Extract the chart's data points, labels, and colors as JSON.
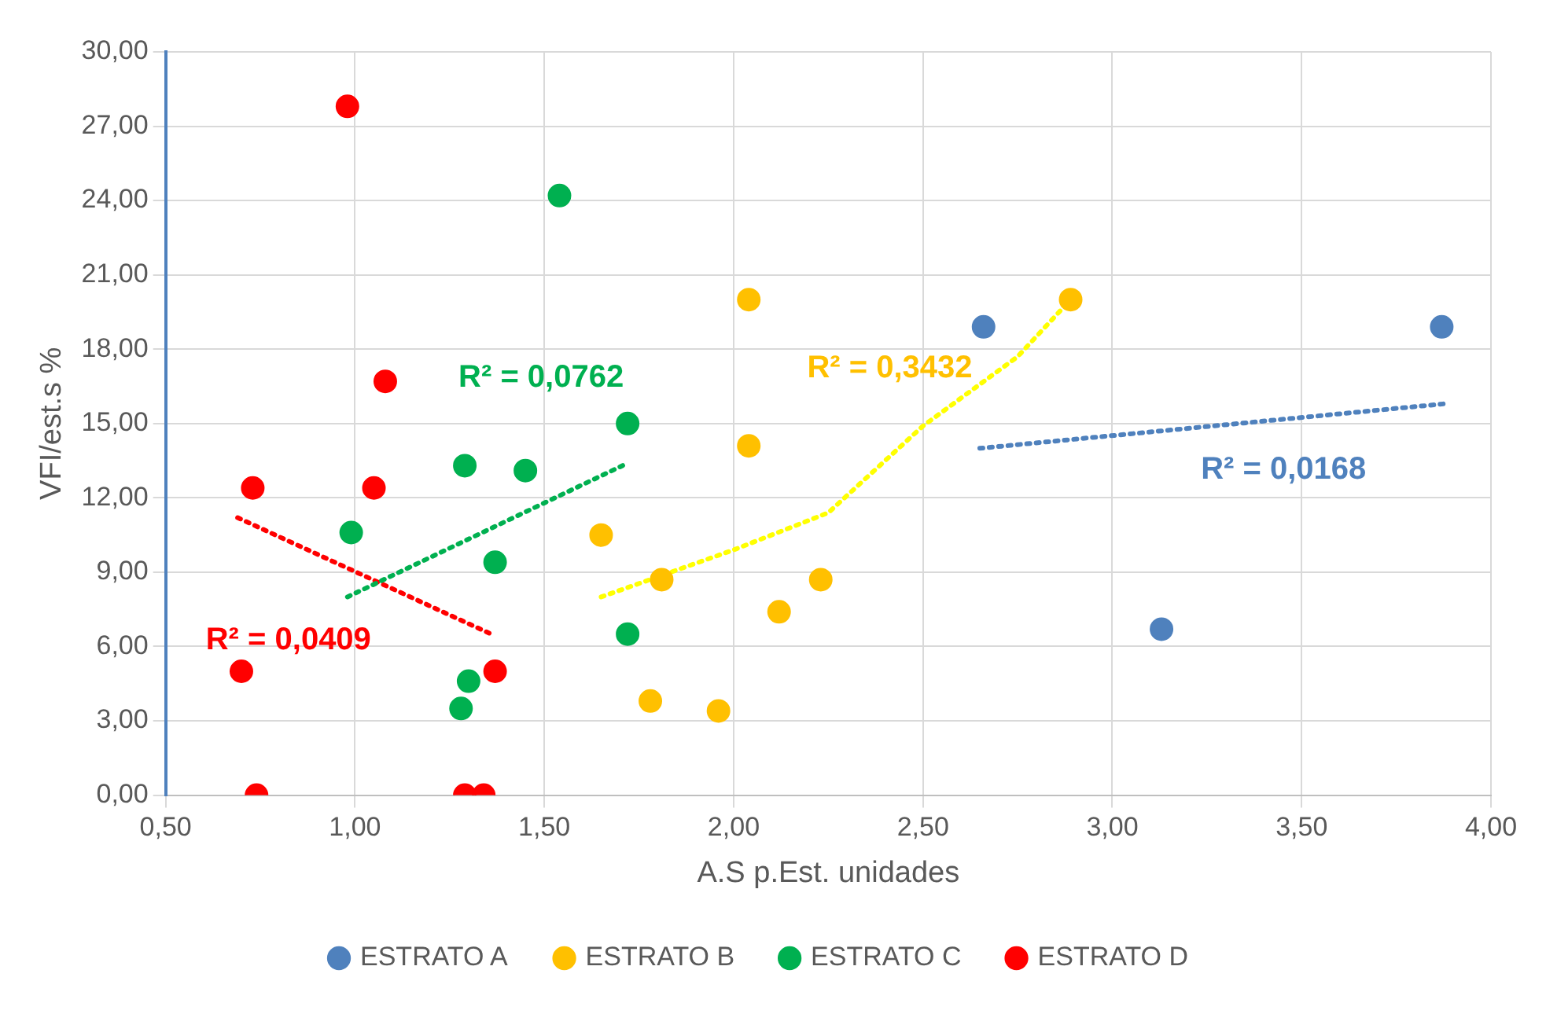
{
  "chart_data": {
    "type": "scatter",
    "xlabel": "A.S p.Est. unidades",
    "ylabel": "VFI/est.s %",
    "xlim": [
      0.5,
      4
    ],
    "xticks": [
      {
        "value": 0.5,
        "label": "0,50"
      },
      {
        "value": 1,
        "label": "1,00"
      },
      {
        "value": 1.5,
        "label": "1,50"
      },
      {
        "value": 2,
        "label": "2,00"
      },
      {
        "value": 2.5,
        "label": "2,50"
      },
      {
        "value": 3,
        "label": "3,00"
      },
      {
        "value": 3.5,
        "label": "3,50"
      },
      {
        "value": 4,
        "label": "4,00"
      }
    ],
    "ylim": [
      0,
      30
    ],
    "yticks": [
      {
        "value": 0,
        "label": "0,00"
      },
      {
        "value": 3,
        "label": "3,00"
      },
      {
        "value": 6,
        "label": "6,00"
      },
      {
        "value": 9,
        "label": "9,00"
      },
      {
        "value": 12,
        "label": "12,00"
      },
      {
        "value": 15,
        "label": "15,00"
      },
      {
        "value": 18,
        "label": "18,00"
      },
      {
        "value": 21,
        "label": "21,00"
      },
      {
        "value": 24,
        "label": "24,00"
      },
      {
        "value": 27,
        "label": "27,00"
      },
      {
        "value": 30,
        "label": "30,00"
      }
    ],
    "grid": true,
    "legend": "bottom",
    "marker": "circle",
    "series": [
      {
        "name": "ESTRATO A",
        "color": "#4f81bd",
        "x": [
          2.66,
          3.87,
          3.13
        ],
        "values": [
          18.9,
          18.9,
          6.7
        ]
      },
      {
        "name": "ESTRATO B",
        "color": "#ffc000",
        "x": [
          2.04,
          2.89,
          2.04,
          1.65,
          1.81,
          2.23,
          2.12,
          1.78,
          1.96
        ],
        "values": [
          20.0,
          20.0,
          14.1,
          10.5,
          8.7,
          8.7,
          7.4,
          3.8,
          3.4
        ]
      },
      {
        "name": "ESTRATO C",
        "color": "#00b050",
        "x": [
          1.54,
          1.72,
          1.29,
          1.45,
          0.99,
          1.37,
          1.72,
          1.3,
          1.28
        ],
        "values": [
          24.2,
          15.0,
          13.3,
          13.1,
          10.6,
          9.4,
          6.5,
          4.6,
          3.5
        ]
      },
      {
        "name": "ESTRATO D",
        "color": "#ff0000",
        "x": [
          0.98,
          1.08,
          0.73,
          1.05,
          0.7,
          1.37,
          0.74,
          1.29,
          1.34
        ],
        "values": [
          27.8,
          16.7,
          12.4,
          12.4,
          5.0,
          5.0,
          0,
          0,
          0
        ]
      },
      {
        "type": "line",
        "color": "#4f81bd",
        "line_style": "dotted",
        "marker": "none",
        "x": [
          2.65,
          3.88
        ],
        "values": [
          14.0,
          15.8
        ]
      },
      {
        "type": "line",
        "color": "#ffff00",
        "line_style": "dotted",
        "marker": "none",
        "x": [
          1.65,
          2.0,
          2.25,
          2.5,
          2.75,
          2.89
        ],
        "values": [
          8.0,
          9.9,
          11.4,
          14.9,
          17.7,
          20.0
        ]
      },
      {
        "type": "line",
        "color": "#00b050",
        "line_style": "dotted",
        "marker": "none",
        "x": [
          0.98,
          1.72
        ],
        "values": [
          8.0,
          13.4
        ]
      },
      {
        "type": "line",
        "color": "#ff0000",
        "line_style": "dotted",
        "marker": "none",
        "x": [
          0.69,
          1.36
        ],
        "values": [
          11.2,
          6.5
        ]
      }
    ],
    "annotations": [
      "R² = 0,0168",
      "R² = 0,3432",
      "R² = 0,0762",
      "R² = 0,0409"
    ]
  }
}
